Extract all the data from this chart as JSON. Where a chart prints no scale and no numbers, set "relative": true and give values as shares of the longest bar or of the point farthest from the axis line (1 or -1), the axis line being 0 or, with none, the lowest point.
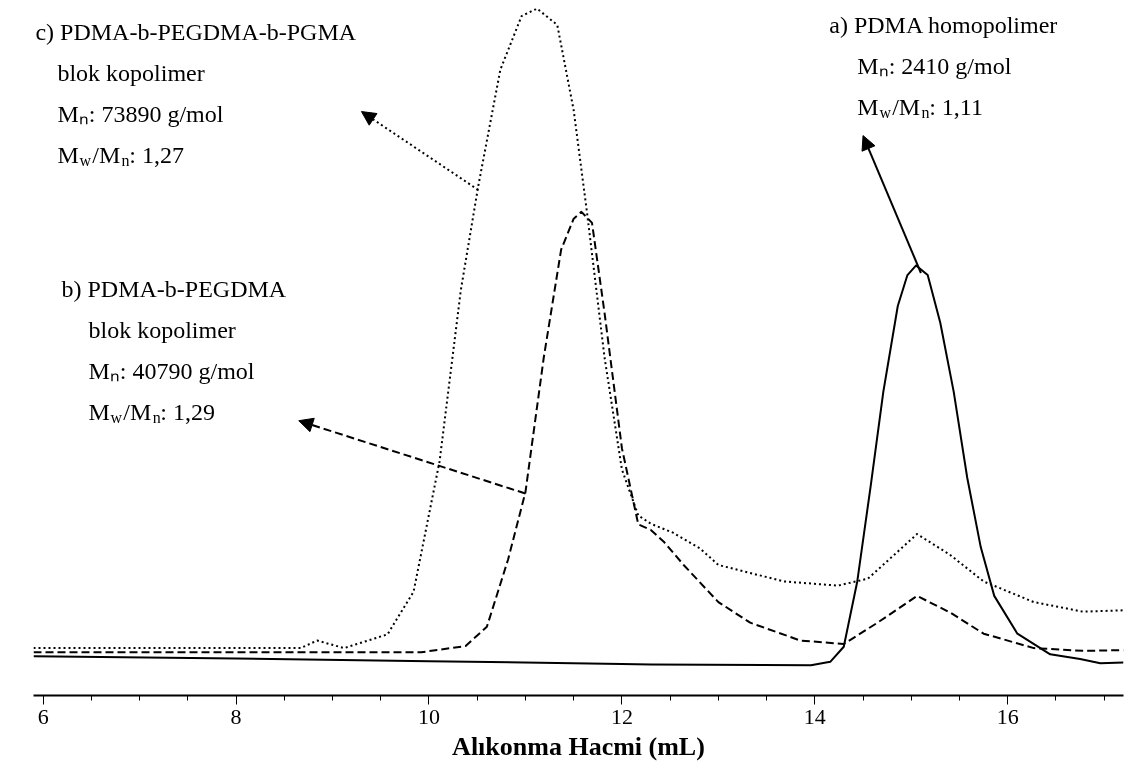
{
  "chart_data": {
    "type": "line",
    "relative": true,
    "xlabel": "Alıkonma Hacmi (mL)",
    "xlim": [
      5.9,
      17.2
    ],
    "xticks": [
      6,
      8,
      10,
      12,
      14,
      16
    ],
    "grid": false,
    "series": [
      {
        "color": "#000000",
        "line_style": "solid",
        "x": [
          5.9,
          8,
          10,
          12,
          12.3,
          13.96,
          14.16,
          14.3,
          14.44,
          14.58,
          14.71,
          14.86,
          14.96,
          15.05,
          15.17,
          15.3,
          15.44,
          15.58,
          15.72,
          15.86,
          16.1,
          16.44,
          16.75,
          16.96,
          17.2
        ],
        "values": [
          0.057,
          0.054,
          0.05,
          0.046,
          0.045,
          0.044,
          0.049,
          0.071,
          0.166,
          0.306,
          0.442,
          0.567,
          0.612,
          0.626,
          0.612,
          0.543,
          0.442,
          0.317,
          0.216,
          0.145,
          0.09,
          0.06,
          0.053,
          0.047,
          0.048
        ]
      },
      {
        "color": "#000000",
        "line_style": "dashed",
        "x": [
          5.9,
          8,
          9.92,
          10.38,
          10.6,
          10.82,
          11.0,
          11.19,
          11.37,
          11.5,
          11.58,
          11.69,
          11.82,
          12.0,
          12.17,
          12.3,
          12.44,
          12.64,
          13.0,
          13.33,
          13.85,
          14.3,
          14.65,
          15.06,
          15.4,
          15.75,
          16.27,
          16.78,
          17.2
        ],
        "values": [
          0.063,
          0.063,
          0.063,
          0.072,
          0.1,
          0.198,
          0.296,
          0.492,
          0.649,
          0.694,
          0.704,
          0.688,
          0.557,
          0.36,
          0.249,
          0.241,
          0.223,
          0.19,
          0.136,
          0.106,
          0.08,
          0.075,
          0.106,
          0.145,
          0.121,
          0.09,
          0.069,
          0.065,
          0.066
        ]
      },
      {
        "color": "#000000",
        "line_style": "dotted",
        "x": [
          5.9,
          8,
          8.67,
          8.84,
          9.12,
          9.57,
          9.84,
          10.11,
          10.33,
          10.51,
          10.74,
          10.96,
          11.12,
          11.33,
          11.5,
          11.64,
          11.82,
          12.0,
          12.17,
          12.3,
          12.53,
          12.81,
          13.0,
          13.68,
          14.24,
          14.55,
          15.06,
          15.4,
          15.75,
          16.27,
          16.78,
          17.2
        ],
        "values": [
          0.069,
          0.069,
          0.069,
          0.08,
          0.069,
          0.089,
          0.151,
          0.341,
          0.59,
          0.741,
          0.911,
          0.989,
          1.0,
          0.976,
          0.852,
          0.701,
          0.492,
          0.329,
          0.262,
          0.25,
          0.237,
          0.214,
          0.19,
          0.166,
          0.16,
          0.17,
          0.235,
          0.205,
          0.166,
          0.136,
          0.122,
          0.124
        ]
      }
    ],
    "annotations": [
      {
        "text": "a) PDMA homopolimer\nMₙ: 2410 g/mol\nM$_{w}$/M$_{n}$: 1,11",
        "x": 15.1,
        "y": 0.615
      },
      {
        "text": "c) PDMA-b-PEGDMA-b-PGMA\nblok kopolimer\nMₙ: 73890 g/mol\nM$_{w}$/M$_{n}$: 1,27",
        "x": 10.51,
        "y": 0.736
      },
      {
        "text": "b) PDMA-b-PEGDMA\nblok kopolimer\nMₙ: 40790 g/mol\nM$_{w}$/M$_{n}$: 1,29",
        "x": 11.0,
        "y": 0.294
      }
    ]
  }
}
